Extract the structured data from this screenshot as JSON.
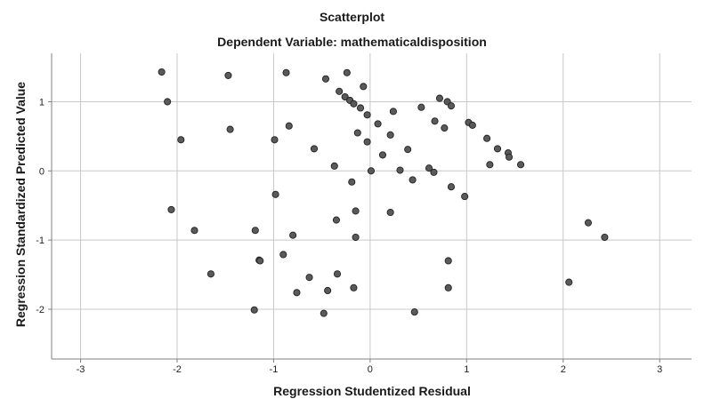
{
  "chart_data": {
    "type": "scatter",
    "title": "Scatterplot",
    "subtitle": "Dependent Variable: mathematicaldisposition",
    "xlabel": "Regression Studentized Residual",
    "ylabel": "Regression Standardized Predicted Value",
    "xlim": [
      -3.3,
      3.33
    ],
    "ylim": [
      -2.72,
      1.7
    ],
    "xticks": [
      -3,
      -2,
      -1,
      0,
      1,
      2,
      3
    ],
    "yticks": [
      -2,
      -1,
      0,
      1
    ],
    "grid": true,
    "colors": {
      "marker_fill": "#5a5a5a",
      "marker_edge": "#222222",
      "grid": "#c8c8c8",
      "axis": "#808080"
    },
    "points": [
      {
        "x": -2.16,
        "y": 1.43
      },
      {
        "x": -2.1,
        "y": 1.0
      },
      {
        "x": -1.96,
        "y": 0.45
      },
      {
        "x": -2.06,
        "y": -0.56
      },
      {
        "x": -1.82,
        "y": -0.86
      },
      {
        "x": -1.65,
        "y": -1.49
      },
      {
        "x": -1.47,
        "y": 1.38
      },
      {
        "x": -1.45,
        "y": 0.6
      },
      {
        "x": -1.19,
        "y": -0.86
      },
      {
        "x": -1.15,
        "y": -1.29
      },
      {
        "x": -1.14,
        "y": -1.3
      },
      {
        "x": -1.2,
        "y": -2.01
      },
      {
        "x": -0.99,
        "y": 0.45
      },
      {
        "x": -0.98,
        "y": -0.34
      },
      {
        "x": -0.9,
        "y": -1.21
      },
      {
        "x": -0.87,
        "y": 1.42
      },
      {
        "x": -0.84,
        "y": 0.65
      },
      {
        "x": -0.8,
        "y": -0.93
      },
      {
        "x": -0.76,
        "y": -1.76
      },
      {
        "x": -0.63,
        "y": -1.54
      },
      {
        "x": -0.58,
        "y": 0.32
      },
      {
        "x": -0.48,
        "y": -2.06
      },
      {
        "x": -0.46,
        "y": 1.33
      },
      {
        "x": -0.44,
        "y": -1.73
      },
      {
        "x": -0.37,
        "y": 0.07
      },
      {
        "x": -0.35,
        "y": -0.71
      },
      {
        "x": -0.34,
        "y": -1.49
      },
      {
        "x": -0.32,
        "y": 1.15
      },
      {
        "x": -0.26,
        "y": 1.07
      },
      {
        "x": -0.24,
        "y": 1.42
      },
      {
        "x": -0.21,
        "y": 1.02
      },
      {
        "x": -0.19,
        "y": -0.16
      },
      {
        "x": -0.17,
        "y": 0.97
      },
      {
        "x": -0.17,
        "y": -1.69
      },
      {
        "x": -0.15,
        "y": -0.58
      },
      {
        "x": -0.15,
        "y": -0.96
      },
      {
        "x": -0.13,
        "y": 0.55
      },
      {
        "x": -0.1,
        "y": 0.91
      },
      {
        "x": -0.07,
        "y": 1.22
      },
      {
        "x": -0.03,
        "y": 0.81
      },
      {
        "x": -0.03,
        "y": 0.42
      },
      {
        "x": 0.01,
        "y": 0.0
      },
      {
        "x": 0.08,
        "y": 0.68
      },
      {
        "x": 0.13,
        "y": 0.23
      },
      {
        "x": 0.21,
        "y": 0.52
      },
      {
        "x": 0.21,
        "y": -0.6
      },
      {
        "x": 0.24,
        "y": 0.86
      },
      {
        "x": 0.31,
        "y": 0.01
      },
      {
        "x": 0.39,
        "y": 0.31
      },
      {
        "x": 0.44,
        "y": -0.13
      },
      {
        "x": 0.46,
        "y": -2.04
      },
      {
        "x": 0.53,
        "y": 0.92
      },
      {
        "x": 0.61,
        "y": 0.04
      },
      {
        "x": 0.66,
        "y": -0.02
      },
      {
        "x": 0.67,
        "y": 0.72
      },
      {
        "x": 0.72,
        "y": 1.05
      },
      {
        "x": 0.77,
        "y": 0.62
      },
      {
        "x": 0.8,
        "y": 1.0
      },
      {
        "x": 0.81,
        "y": -1.3
      },
      {
        "x": 0.81,
        "y": -1.69
      },
      {
        "x": 0.84,
        "y": 0.94
      },
      {
        "x": 0.84,
        "y": -0.23
      },
      {
        "x": 0.98,
        "y": -0.37
      },
      {
        "x": 1.02,
        "y": 0.7
      },
      {
        "x": 1.06,
        "y": 0.66
      },
      {
        "x": 1.21,
        "y": 0.47
      },
      {
        "x": 1.24,
        "y": 0.09
      },
      {
        "x": 1.32,
        "y": 0.32
      },
      {
        "x": 1.43,
        "y": 0.26
      },
      {
        "x": 1.44,
        "y": 0.2
      },
      {
        "x": 1.56,
        "y": 0.09
      },
      {
        "x": 2.06,
        "y": -1.61
      },
      {
        "x": 2.26,
        "y": -0.75
      },
      {
        "x": 2.43,
        "y": -0.96
      }
    ]
  }
}
